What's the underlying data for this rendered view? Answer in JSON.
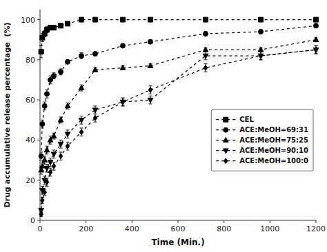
{
  "chart_data": {
    "type": "line",
    "xlabel": "Time (Min.)",
    "ylabel": "Drug accumulative release percentage  (%)",
    "xlim": [
      0,
      1200
    ],
    "ylim": [
      0,
      105
    ],
    "xticks": [
      0,
      200,
      400,
      600,
      800,
      1000,
      1200
    ],
    "yticks": [
      0,
      20,
      40,
      60,
      80,
      100
    ],
    "grid": false,
    "legend": "right",
    "line_style": "dashed",
    "x": [
      5,
      10,
      20,
      30,
      45,
      60,
      90,
      120,
      180,
      240,
      360,
      480,
      720,
      960,
      1200
    ],
    "series": [
      {
        "name": "CEL",
        "marker": "square",
        "color": "black",
        "values": [
          84,
          91,
          93,
          95,
          96,
          96,
          97,
          98,
          100,
          100,
          100,
          100,
          100,
          100,
          100
        ],
        "yerr": [
          3,
          2,
          1.5,
          1.5,
          1,
          1,
          1,
          0.5,
          0.5,
          0.5,
          0.5,
          0.5,
          0.5,
          0.5,
          0.5
        ]
      },
      {
        "name": "ACE:MeOH=69:31",
        "marker": "circle",
        "color": "black",
        "values": [
          32,
          48,
          57,
          63,
          70,
          72,
          74,
          79,
          82,
          83,
          87,
          89,
          93,
          94,
          97
        ],
        "yerr": [
          2,
          2,
          2,
          2,
          2,
          1.5,
          1.5,
          1,
          1.5,
          1,
          1,
          1,
          1,
          1,
          1
        ]
      },
      {
        "name": "ACE:MeOH=75:25",
        "marker": "triangle-up",
        "color": "black",
        "values": [
          25,
          27,
          30,
          35,
          40,
          42,
          50,
          57,
          66,
          75,
          76,
          77,
          85,
          85,
          90
        ],
        "yerr": [
          2,
          2,
          2,
          2,
          2,
          1.5,
          1.5,
          1.5,
          1.5,
          1,
          1,
          1,
          1,
          1,
          1
        ]
      },
      {
        "name": "ACE:MeOH=90:10",
        "marker": "triangle-down",
        "color": "black",
        "values": [
          5,
          15,
          20,
          26,
          29,
          33,
          38,
          43,
          50,
          55,
          59,
          60,
          82,
          82,
          85
        ],
        "yerr": [
          1,
          2,
          2,
          2,
          2,
          2,
          2,
          2,
          2,
          2,
          2,
          2,
          2,
          2,
          2
        ]
      },
      {
        "name": "ACE:MeOH=100:0",
        "marker": "diamond",
        "color": "black",
        "values": [
          3,
          10,
          14,
          19,
          24,
          27,
          32,
          37,
          44,
          51,
          59,
          65,
          76,
          82,
          85
        ],
        "yerr": [
          1,
          1.5,
          1.5,
          2,
          2,
          2,
          2,
          2,
          2,
          2,
          2,
          2,
          2,
          2,
          2
        ]
      }
    ]
  }
}
